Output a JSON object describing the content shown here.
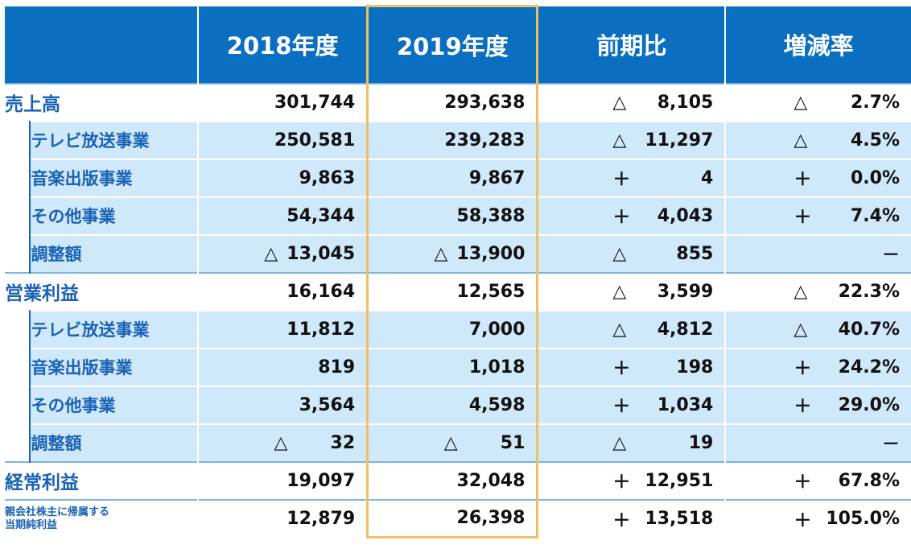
{
  "header": {
    "col1": "2018年度",
    "col2": "2019年度",
    "col3": "前期比",
    "col4": "増減率"
  },
  "rows": [
    {
      "type": "main",
      "label": "売上高",
      "v2018": "301,744",
      "v2019": "293,638",
      "diff_sym": "△",
      "diff": "8,105",
      "rate_sym": "△",
      "rate": "2.7%"
    },
    {
      "type": "sub",
      "label": "テレビ放送事業",
      "v2018": "250,581",
      "v2019": "239,283",
      "diff_sym": "△",
      "diff": "11,297",
      "rate_sym": "△",
      "rate": "4.5%"
    },
    {
      "type": "sub",
      "label": "音楽出版事業",
      "v2018": "9,863",
      "v2019": "9,867",
      "diff_sym": "＋",
      "diff": "4",
      "rate_sym": "＋",
      "rate": "0.0%"
    },
    {
      "type": "sub",
      "label": "その他事業",
      "v2018": "54,344",
      "v2019": "58,388",
      "diff_sym": "＋",
      "diff": "4,043",
      "rate_sym": "＋",
      "rate": "7.4%"
    },
    {
      "type": "sub",
      "label": "調整額",
      "v2018_sym": "△",
      "v2018": "13,045",
      "v2019_sym": "△",
      "v2019": "13,900",
      "diff_sym": "△",
      "diff": "855",
      "rate_sym": "",
      "rate": "－"
    },
    {
      "type": "main",
      "label": "営業利益",
      "v2018": "16,164",
      "v2019": "12,565",
      "diff_sym": "△",
      "diff": "3,599",
      "rate_sym": "△",
      "rate": "22.3%"
    },
    {
      "type": "sub",
      "label": "テレビ放送事業",
      "v2018": "11,812",
      "v2019": "7,000",
      "diff_sym": "△",
      "diff": "4,812",
      "rate_sym": "△",
      "rate": "40.7%"
    },
    {
      "type": "sub",
      "label": "音楽出版事業",
      "v2018": "819",
      "v2019": "1,018",
      "diff_sym": "＋",
      "diff": "198",
      "rate_sym": "＋",
      "rate": "24.2%"
    },
    {
      "type": "sub",
      "label": "その他事業",
      "v2018": "3,564",
      "v2019": "4,598",
      "diff_sym": "＋",
      "diff": "1,034",
      "rate_sym": "＋",
      "rate": "29.0%"
    },
    {
      "type": "sub",
      "label": "調整額",
      "v2018_sym": "△",
      "v2018": "32",
      "v2019_sym": "△",
      "v2019": "51",
      "diff_sym": "△",
      "diff": "19",
      "rate_sym": "",
      "rate": "－"
    },
    {
      "type": "main",
      "label": "経常利益",
      "v2018": "19,097",
      "v2019": "32,048",
      "diff_sym": "＋",
      "diff": "12,951",
      "rate_sym": "＋",
      "rate": "67.8%"
    },
    {
      "type": "main",
      "label": "親会社株主に帰属する\n当期純利益",
      "v2018": "12,879",
      "v2019": "26,398",
      "diff_sym": "＋",
      "diff": "13,518",
      "rate_sym": "＋",
      "rate": "105.0%"
    }
  ],
  "colors": {
    "header_bg": "#0a6fc0",
    "label_text": "#1a62b5",
    "sub_row_bg": "#cfe8fa",
    "highlight_border": "#f0c060"
  }
}
